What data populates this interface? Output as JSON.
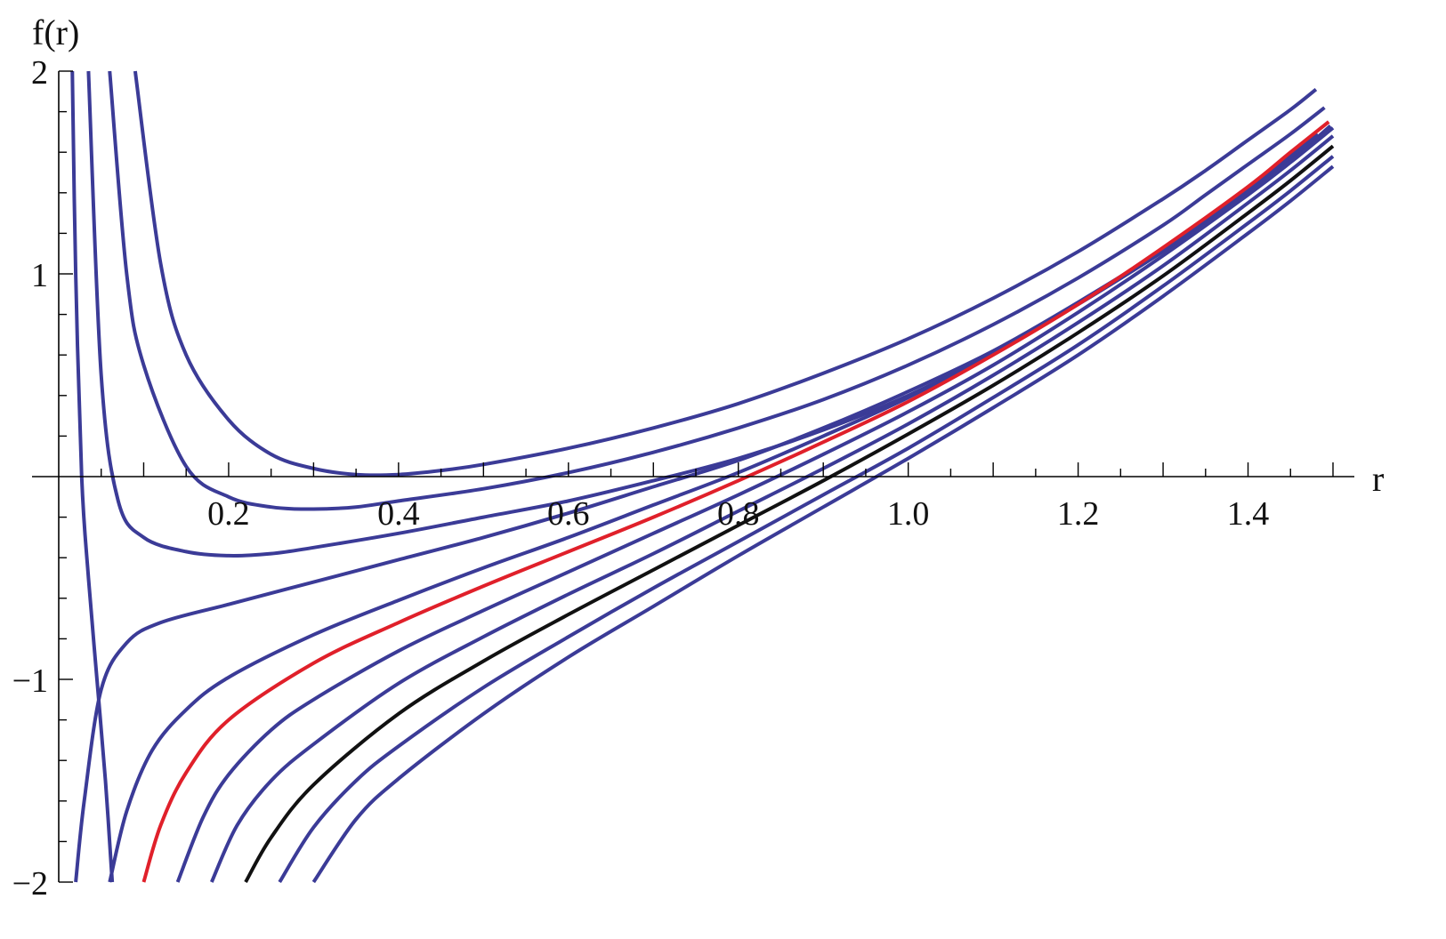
{
  "chart_data": {
    "type": "line",
    "title": "",
    "xlabel": "r",
    "ylabel": "f(r)",
    "xlim": [
      0,
      1.5
    ],
    "ylim": [
      -2,
      2
    ],
    "x_ticks": [
      0.2,
      0.4,
      0.6,
      0.8,
      1.0,
      1.2,
      1.4
    ],
    "x_tick_labels": [
      "0.2",
      "0.4",
      "0.6",
      "0.8",
      "1.0",
      "1.2",
      "1.4"
    ],
    "y_ticks": [
      -2,
      -1,
      1,
      2
    ],
    "y_tick_labels": [
      "−2",
      "−1",
      "1",
      "2"
    ],
    "grid": false,
    "legend": "none",
    "colors": {
      "blue": "#3b3b97",
      "red": "#e0202a",
      "black": "#111111"
    },
    "series": [
      {
        "color": "blue",
        "points": [
          [
            0.016,
            2.0
          ],
          [
            0.02,
            1.0
          ],
          [
            0.027,
            0.0
          ],
          [
            0.035,
            -0.5
          ],
          [
            0.045,
            -1.0
          ],
          [
            0.055,
            -1.5
          ],
          [
            0.063,
            -2.0
          ]
        ]
      },
      {
        "color": "blue",
        "points": [
          [
            0.035,
            2.0
          ],
          [
            0.05,
            0.5
          ],
          [
            0.07,
            -0.12
          ],
          [
            0.1,
            -0.3
          ],
          [
            0.15,
            -0.37
          ],
          [
            0.2,
            -0.39
          ],
          [
            0.25,
            -0.38
          ],
          [
            0.3,
            -0.35
          ],
          [
            0.4,
            -0.28
          ],
          [
            0.5,
            -0.2
          ],
          [
            0.6,
            -0.12
          ],
          [
            0.7,
            -0.02
          ],
          [
            0.8,
            0.09
          ],
          [
            0.9,
            0.23
          ],
          [
            1.0,
            0.4
          ],
          [
            1.1,
            0.61
          ],
          [
            1.2,
            0.85
          ],
          [
            1.3,
            1.11
          ],
          [
            1.35,
            1.25
          ],
          [
            1.4,
            1.4
          ],
          [
            1.45,
            1.56
          ],
          [
            1.497,
            1.73
          ]
        ]
      },
      {
        "color": "blue",
        "points": [
          [
            0.06,
            2.0
          ],
          [
            0.08,
            1.0
          ],
          [
            0.1,
            0.55
          ],
          [
            0.15,
            0.05
          ],
          [
            0.2,
            -0.1
          ],
          [
            0.25,
            -0.15
          ],
          [
            0.3,
            -0.16
          ],
          [
            0.35,
            -0.15
          ],
          [
            0.4,
            -0.12
          ],
          [
            0.5,
            -0.06
          ],
          [
            0.6,
            0.02
          ],
          [
            0.7,
            0.12
          ],
          [
            0.8,
            0.24
          ],
          [
            0.9,
            0.38
          ],
          [
            1.0,
            0.55
          ],
          [
            1.1,
            0.75
          ],
          [
            1.2,
            0.98
          ],
          [
            1.3,
            1.24
          ],
          [
            1.35,
            1.39
          ],
          [
            1.4,
            1.54
          ],
          [
            1.45,
            1.69
          ],
          [
            1.49,
            1.82
          ]
        ]
      },
      {
        "color": "blue",
        "points": [
          [
            0.09,
            2.0
          ],
          [
            0.12,
            1.05
          ],
          [
            0.15,
            0.6
          ],
          [
            0.2,
            0.28
          ],
          [
            0.25,
            0.11
          ],
          [
            0.3,
            0.04
          ],
          [
            0.35,
            0.01
          ],
          [
            0.4,
            0.01
          ],
          [
            0.45,
            0.03
          ],
          [
            0.5,
            0.06
          ],
          [
            0.6,
            0.14
          ],
          [
            0.7,
            0.24
          ],
          [
            0.8,
            0.36
          ],
          [
            0.9,
            0.51
          ],
          [
            1.0,
            0.68
          ],
          [
            1.1,
            0.88
          ],
          [
            1.2,
            1.11
          ],
          [
            1.3,
            1.37
          ],
          [
            1.35,
            1.51
          ],
          [
            1.4,
            1.66
          ],
          [
            1.45,
            1.81
          ],
          [
            1.48,
            1.91
          ]
        ]
      },
      {
        "color": "blue",
        "points": [
          [
            0.02,
            -2.0
          ],
          [
            0.03,
            -1.6
          ],
          [
            0.05,
            -1.05
          ],
          [
            0.08,
            -0.82
          ],
          [
            0.12,
            -0.72
          ],
          [
            0.2,
            -0.63
          ],
          [
            0.3,
            -0.52
          ],
          [
            0.4,
            -0.41
          ],
          [
            0.5,
            -0.3
          ],
          [
            0.6,
            -0.18
          ],
          [
            0.7,
            -0.05
          ],
          [
            0.8,
            0.08
          ],
          [
            0.9,
            0.24
          ],
          [
            1.0,
            0.42
          ],
          [
            1.1,
            0.62
          ],
          [
            1.2,
            0.86
          ],
          [
            1.3,
            1.12
          ],
          [
            1.4,
            1.42
          ],
          [
            1.45,
            1.58
          ],
          [
            1.482,
            1.69
          ]
        ]
      },
      {
        "color": "blue",
        "points": [
          [
            0.06,
            -2.0
          ],
          [
            0.08,
            -1.65
          ],
          [
            0.11,
            -1.35
          ],
          [
            0.15,
            -1.15
          ],
          [
            0.2,
            -0.99
          ],
          [
            0.3,
            -0.78
          ],
          [
            0.4,
            -0.61
          ],
          [
            0.5,
            -0.45
          ],
          [
            0.6,
            -0.3
          ],
          [
            0.7,
            -0.14
          ],
          [
            0.8,
            0.02
          ],
          [
            0.9,
            0.2
          ],
          [
            1.0,
            0.39
          ],
          [
            1.1,
            0.61
          ],
          [
            1.2,
            0.85
          ],
          [
            1.3,
            1.12
          ],
          [
            1.4,
            1.42
          ],
          [
            1.45,
            1.58
          ],
          [
            1.475,
            1.66
          ]
        ]
      },
      {
        "color": "red",
        "points": [
          [
            0.1,
            -2.0
          ],
          [
            0.12,
            -1.72
          ],
          [
            0.15,
            -1.46
          ],
          [
            0.2,
            -1.2
          ],
          [
            0.3,
            -0.92
          ],
          [
            0.4,
            -0.72
          ],
          [
            0.5,
            -0.54
          ],
          [
            0.6,
            -0.37
          ],
          [
            0.7,
            -0.2
          ],
          [
            0.8,
            -0.02
          ],
          [
            0.9,
            0.17
          ],
          [
            1.0,
            0.37
          ],
          [
            1.1,
            0.6
          ],
          [
            1.2,
            0.85
          ],
          [
            1.3,
            1.13
          ],
          [
            1.4,
            1.43
          ],
          [
            1.45,
            1.6
          ],
          [
            1.495,
            1.75
          ]
        ]
      },
      {
        "color": "blue",
        "points": [
          [
            0.14,
            -2.0
          ],
          [
            0.17,
            -1.68
          ],
          [
            0.2,
            -1.47
          ],
          [
            0.25,
            -1.25
          ],
          [
            0.3,
            -1.1
          ],
          [
            0.4,
            -0.86
          ],
          [
            0.5,
            -0.66
          ],
          [
            0.6,
            -0.47
          ],
          [
            0.7,
            -0.28
          ],
          [
            0.8,
            -0.09
          ],
          [
            0.9,
            0.11
          ],
          [
            1.0,
            0.32
          ],
          [
            1.1,
            0.55
          ],
          [
            1.2,
            0.81
          ],
          [
            1.3,
            1.09
          ],
          [
            1.4,
            1.39
          ],
          [
            1.45,
            1.55
          ],
          [
            1.5,
            1.72
          ]
        ]
      },
      {
        "color": "blue",
        "points": [
          [
            0.18,
            -2.0
          ],
          [
            0.21,
            -1.72
          ],
          [
            0.25,
            -1.5
          ],
          [
            0.3,
            -1.32
          ],
          [
            0.4,
            -1.02
          ],
          [
            0.5,
            -0.79
          ],
          [
            0.6,
            -0.58
          ],
          [
            0.7,
            -0.38
          ],
          [
            0.8,
            -0.17
          ],
          [
            0.9,
            0.04
          ],
          [
            1.0,
            0.26
          ],
          [
            1.1,
            0.5
          ],
          [
            1.2,
            0.76
          ],
          [
            1.3,
            1.04
          ],
          [
            1.4,
            1.35
          ],
          [
            1.45,
            1.51
          ],
          [
            1.5,
            1.68
          ]
        ]
      },
      {
        "color": "black",
        "points": [
          [
            0.22,
            -2.0
          ],
          [
            0.25,
            -1.78
          ],
          [
            0.3,
            -1.52
          ],
          [
            0.4,
            -1.17
          ],
          [
            0.5,
            -0.91
          ],
          [
            0.6,
            -0.68
          ],
          [
            0.7,
            -0.46
          ],
          [
            0.8,
            -0.24
          ],
          [
            0.9,
            -0.02
          ],
          [
            1.0,
            0.21
          ],
          [
            1.1,
            0.45
          ],
          [
            1.2,
            0.71
          ],
          [
            1.3,
            0.99
          ],
          [
            1.4,
            1.3
          ],
          [
            1.45,
            1.46
          ],
          [
            1.5,
            1.63
          ]
        ]
      },
      {
        "color": "blue",
        "points": [
          [
            0.26,
            -2.0
          ],
          [
            0.3,
            -1.73
          ],
          [
            0.35,
            -1.5
          ],
          [
            0.4,
            -1.33
          ],
          [
            0.5,
            -1.04
          ],
          [
            0.6,
            -0.79
          ],
          [
            0.7,
            -0.55
          ],
          [
            0.8,
            -0.32
          ],
          [
            0.9,
            -0.09
          ],
          [
            1.0,
            0.14
          ],
          [
            1.1,
            0.39
          ],
          [
            1.2,
            0.65
          ],
          [
            1.3,
            0.94
          ],
          [
            1.4,
            1.25
          ],
          [
            1.45,
            1.41
          ],
          [
            1.5,
            1.58
          ]
        ]
      },
      {
        "color": "blue",
        "points": [
          [
            0.3,
            -2.0
          ],
          [
            0.35,
            -1.69
          ],
          [
            0.4,
            -1.49
          ],
          [
            0.5,
            -1.17
          ],
          [
            0.6,
            -0.89
          ],
          [
            0.7,
            -0.64
          ],
          [
            0.8,
            -0.39
          ],
          [
            0.9,
            -0.15
          ],
          [
            1.0,
            0.09
          ],
          [
            1.1,
            0.34
          ],
          [
            1.2,
            0.6
          ],
          [
            1.3,
            0.89
          ],
          [
            1.4,
            1.2
          ],
          [
            1.45,
            1.36
          ],
          [
            1.5,
            1.53
          ]
        ]
      }
    ]
  }
}
